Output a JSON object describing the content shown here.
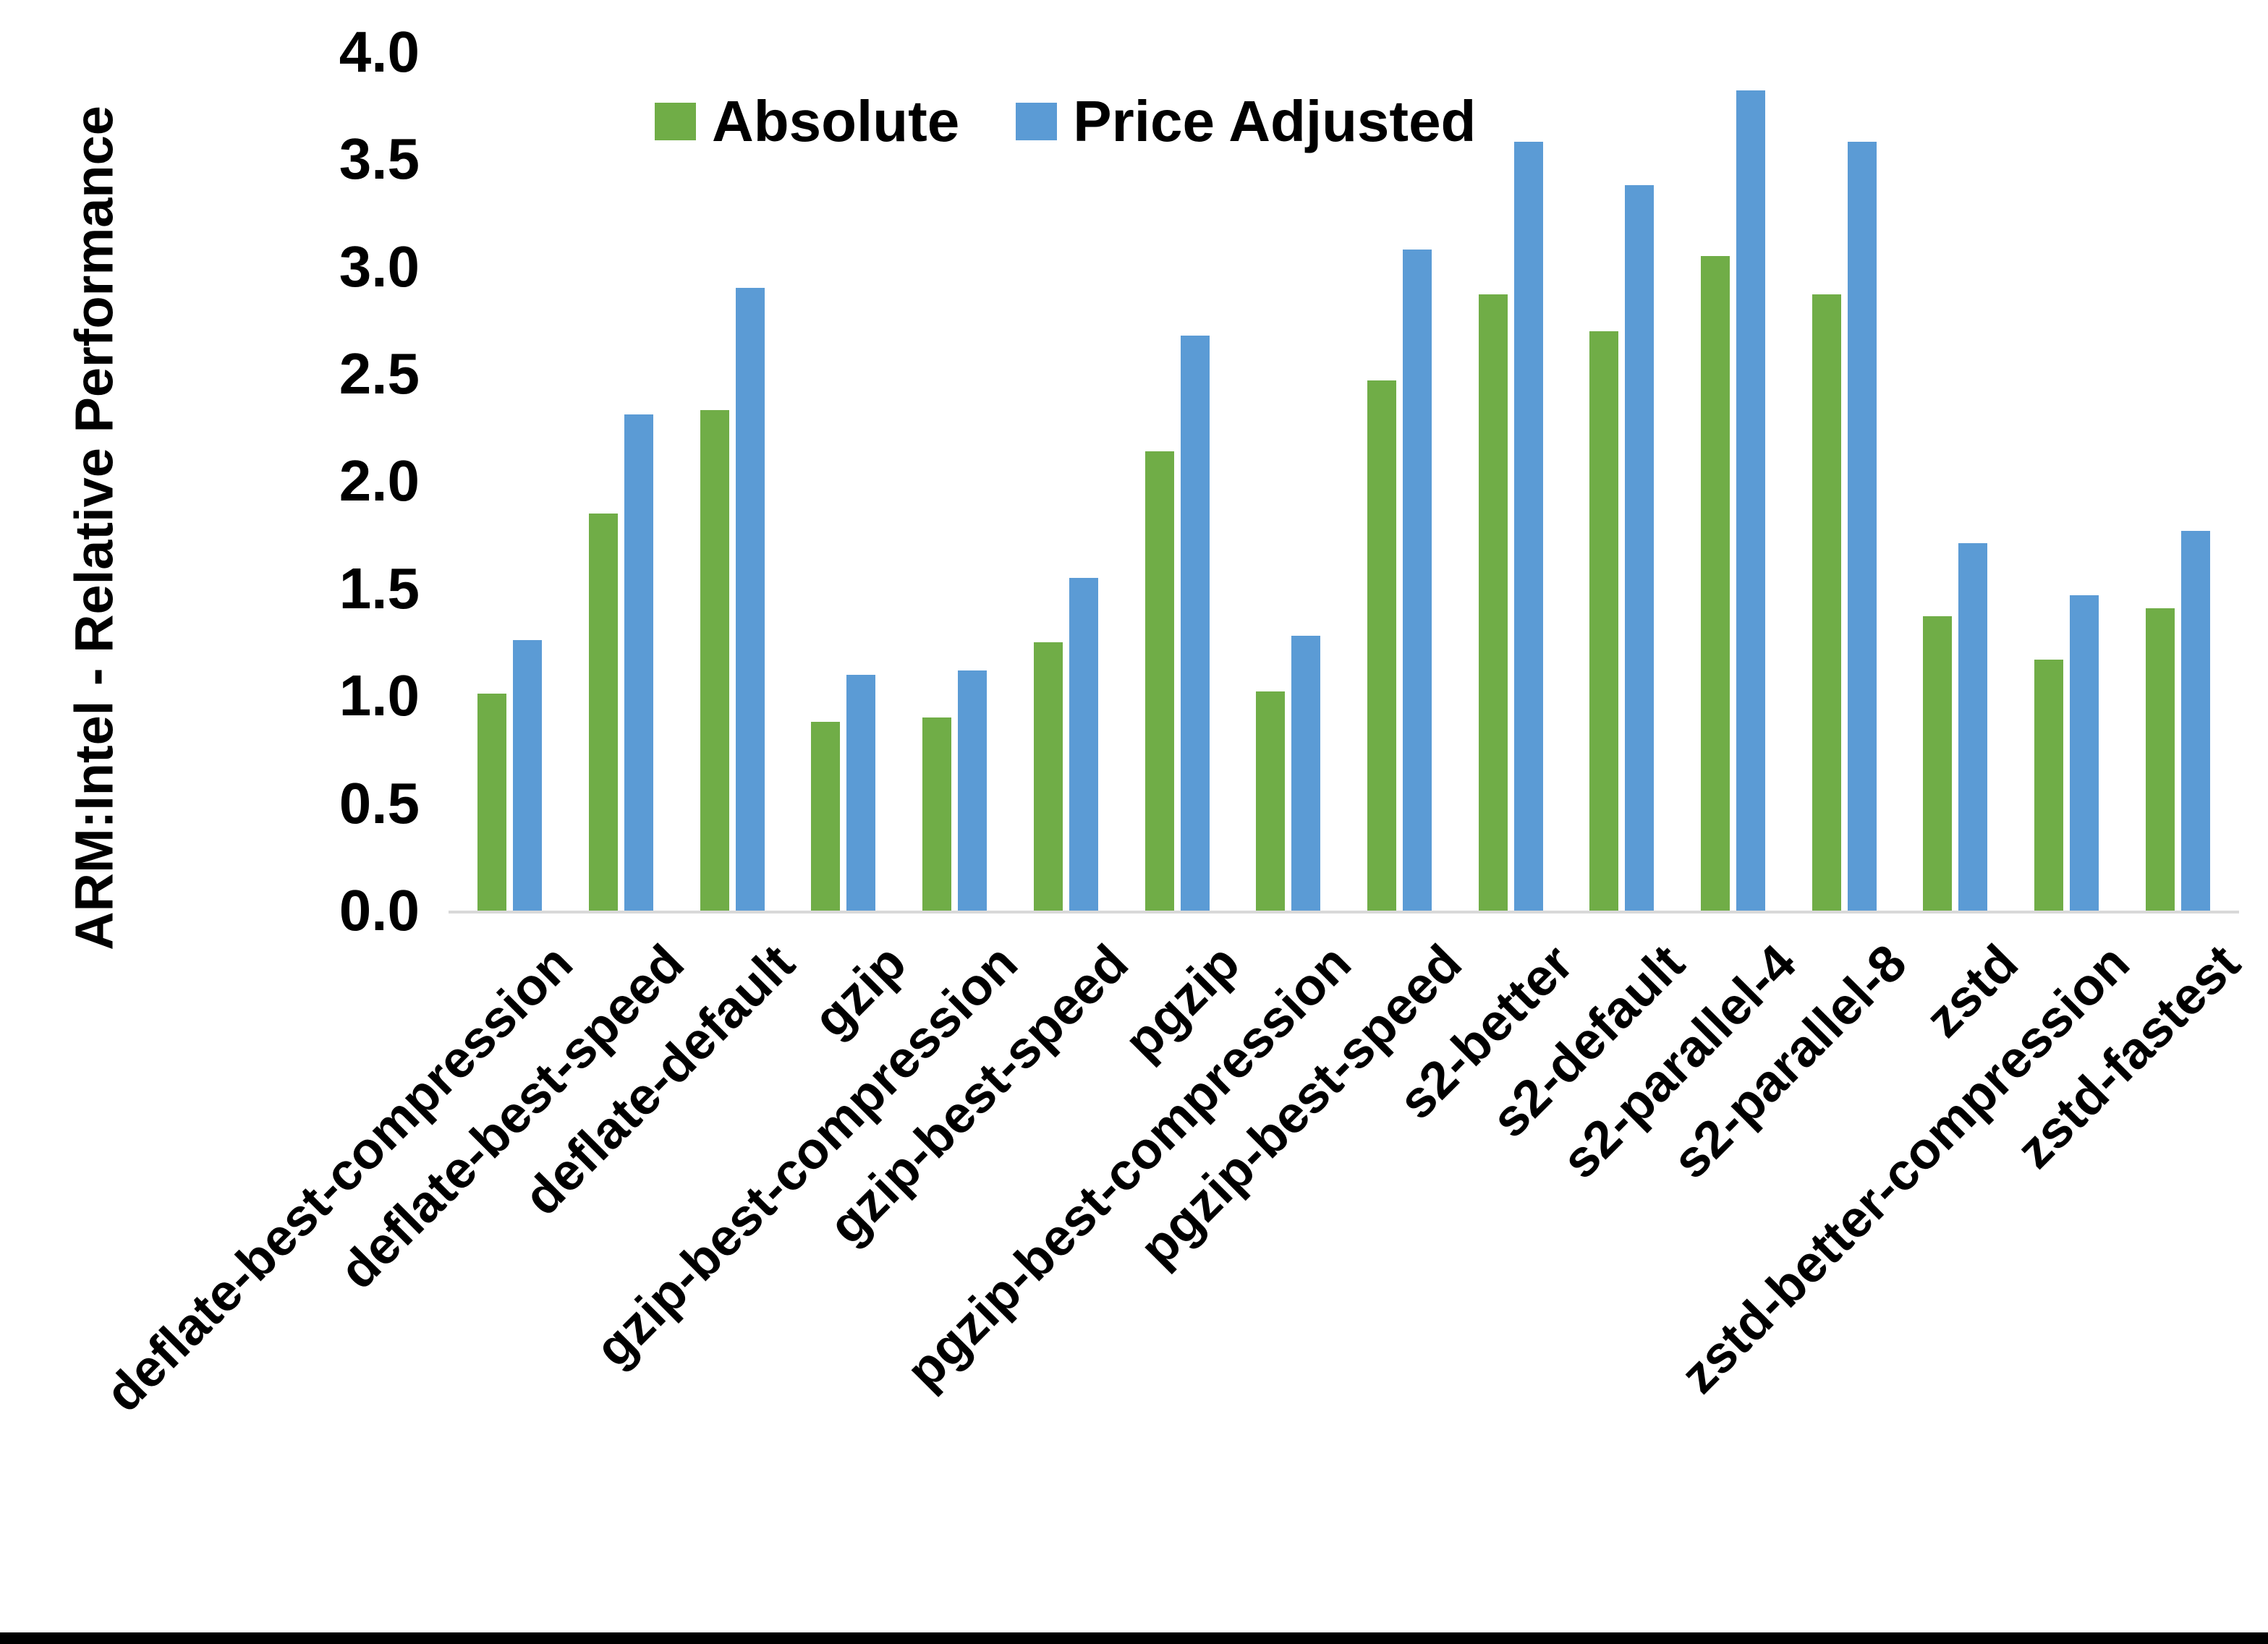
{
  "chart_data": {
    "type": "bar",
    "title": "",
    "xlabel": "",
    "ylabel": "ARM:Intel - Relative Performance",
    "ylim": [
      0,
      4
    ],
    "ytick_step": 0.5,
    "ytick_labels": [
      "0.0",
      "0.5",
      "1.0",
      "1.5",
      "2.0",
      "2.5",
      "3.0",
      "3.5",
      "4.0"
    ],
    "grid": false,
    "legend_position": "top-center",
    "categories": [
      "deflate-best-compression",
      "deflate-best-speed",
      "deflate-default",
      "gzip",
      "gzip-best-compression",
      "gzip-best-speed",
      "pgzip",
      "pgzip-best-compression",
      "pgzip-best-speed",
      "s2-better",
      "s2-default",
      "s2-parallel-4",
      "s2-parallel-8",
      "zstd",
      "zstd-better-compression",
      "zstd-fastest"
    ],
    "series": [
      {
        "name": "Absolute",
        "color": "#70AD47",
        "values": [
          1.01,
          1.85,
          2.33,
          0.88,
          0.9,
          1.25,
          2.14,
          1.02,
          2.47,
          2.87,
          2.7,
          3.05,
          2.87,
          1.37,
          1.17,
          1.41
        ]
      },
      {
        "name": "Price Adjusted",
        "color": "#5B9BD5",
        "values": [
          1.26,
          2.31,
          2.9,
          1.1,
          1.12,
          1.55,
          2.68,
          1.28,
          3.08,
          3.58,
          3.38,
          3.82,
          3.58,
          1.71,
          1.47,
          1.77
        ]
      }
    ]
  },
  "colors": {
    "background": "#FFFFFF",
    "axis_line": "#D9D9D9",
    "text": "#000000",
    "bottom_border": "#000000"
  }
}
